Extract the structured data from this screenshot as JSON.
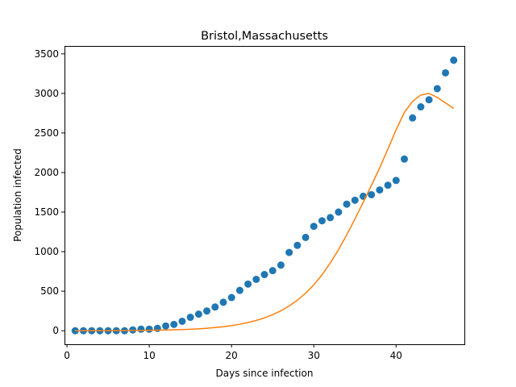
{
  "chart_data": {
    "type": "scatter",
    "title": "Bristol,Massachusetts",
    "xlabel": "Days since infection",
    "ylabel": "Population infected",
    "xlim": [
      -0.3,
      48.3
    ],
    "ylim": [
      -171,
      3600
    ],
    "xticks": [
      0,
      10,
      20,
      30,
      40
    ],
    "yticks": [
      0,
      500,
      1000,
      1500,
      2000,
      2500,
      3000,
      3500
    ],
    "grid": false,
    "series": [
      {
        "kind": "scatter",
        "color": "#1f77b4",
        "x": [
          1,
          2,
          3,
          4,
          5,
          6,
          7,
          8,
          9,
          10,
          11,
          12,
          13,
          14,
          15,
          16,
          17,
          18,
          19,
          20,
          21,
          22,
          23,
          24,
          25,
          26,
          27,
          28,
          29,
          30,
          31,
          32,
          33,
          34,
          35,
          36,
          37,
          38,
          39,
          40,
          41,
          42,
          43,
          44,
          45,
          46,
          47
        ],
        "y": [
          0,
          0,
          0,
          0,
          0,
          0,
          0,
          10,
          20,
          20,
          30,
          60,
          80,
          120,
          170,
          210,
          250,
          300,
          360,
          420,
          510,
          590,
          650,
          710,
          760,
          830,
          990,
          1080,
          1180,
          1320,
          1390,
          1430,
          1500,
          1600,
          1650,
          1700,
          1720,
          1780,
          1840,
          1900,
          2170,
          2690,
          2830,
          2920,
          3060,
          3260,
          3420
        ]
      },
      {
        "kind": "line",
        "color": "#ff7f0e",
        "x": [
          1,
          2,
          3,
          4,
          5,
          6,
          7,
          8,
          9,
          10,
          11,
          12,
          13,
          14,
          15,
          16,
          17,
          18,
          19,
          20,
          21,
          22,
          23,
          24,
          25,
          26,
          27,
          28,
          29,
          30,
          31,
          32,
          33,
          34,
          35,
          36,
          37,
          38,
          39,
          40,
          41,
          42,
          43,
          44,
          45,
          46,
          47
        ],
        "y": [
          0,
          0,
          1,
          1,
          1,
          2,
          2,
          3,
          4,
          6,
          7,
          9,
          12,
          15,
          19,
          24,
          31,
          40,
          51,
          65,
          82,
          104,
          130,
          163,
          203,
          253,
          313,
          386,
          474,
          580,
          707,
          856,
          1024,
          1212,
          1413,
          1624,
          1838,
          2058,
          2296,
          2540,
          2760,
          2900,
          2980,
          3000,
          2950,
          2880,
          2810
        ]
      }
    ]
  }
}
